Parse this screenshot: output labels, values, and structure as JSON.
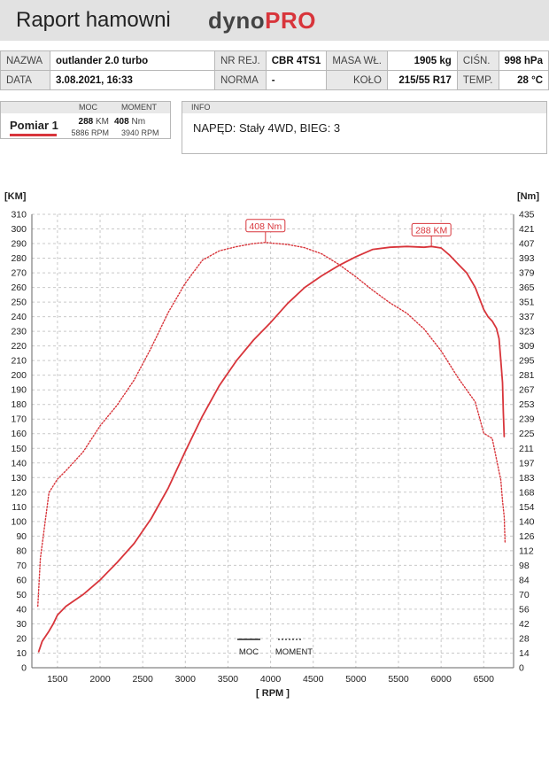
{
  "header": {
    "title": "Raport hamowni",
    "logo_primary": "dyno",
    "logo_accent": "PRO"
  },
  "meta": {
    "row1": [
      {
        "label": "NAZWA",
        "value": "outlander 2.0 turbo"
      },
      {
        "label": "NR REJ.",
        "value": "CBR 4TS1"
      },
      {
        "label": "MASA WŁ.",
        "value": "1905 kg"
      },
      {
        "label": "CIŚN.",
        "value": "998 hPa"
      }
    ],
    "row2": [
      {
        "label": "DATA",
        "value": "3.08.2021, 16:33"
      },
      {
        "label": "NORMA",
        "value": "-"
      },
      {
        "label": "KOŁO",
        "value": "215/55 R17"
      },
      {
        "label": "TEMP.",
        "value": "28 °C"
      }
    ]
  },
  "run": {
    "name": "Pomiar 1",
    "power_header": "MOC",
    "torque_header": "MOMENT",
    "power_value": "288",
    "power_unit": "KM",
    "power_rpm": "5886 RPM",
    "torque_value": "408",
    "torque_unit": "Nm",
    "torque_rpm": "3940 RPM"
  },
  "info": {
    "header": "INFO",
    "text": "NAPĘD: Stały 4WD,  BIEG: 3"
  },
  "colors": {
    "accent": "#d8353b",
    "grid": "#c9c9c9",
    "header_bg": "#e2e2e2"
  },
  "chart_data": {
    "type": "line",
    "xlabel": "[ RPM ]",
    "ylabel_left": "[KM]",
    "ylabel_right": "[Nm]",
    "xlim": [
      1200,
      6850
    ],
    "ylim_left": [
      0,
      310
    ],
    "ylim_right": [
      0,
      435
    ],
    "x_ticks": [
      1500,
      2000,
      2500,
      3000,
      3500,
      4000,
      4500,
      5000,
      5500,
      6000,
      6500
    ],
    "y_left_ticks": [
      0,
      10,
      20,
      30,
      40,
      50,
      60,
      70,
      80,
      90,
      100,
      110,
      120,
      130,
      140,
      150,
      160,
      170,
      180,
      190,
      200,
      210,
      220,
      230,
      240,
      250,
      260,
      270,
      280,
      290,
      300,
      310
    ],
    "y_right_ticks": [
      0,
      14,
      28,
      42,
      56,
      70,
      84,
      98,
      112,
      126,
      140,
      154,
      168,
      183,
      197,
      211,
      225,
      239,
      253,
      267,
      281,
      295,
      309,
      323,
      337,
      351,
      365,
      379,
      393,
      407,
      421,
      435
    ],
    "grid": true,
    "legend": {
      "position": "bottom-center",
      "entries": [
        "MOC",
        "MOMENT"
      ]
    },
    "series": [
      {
        "name": "MOC",
        "axis": "left",
        "unit": "KM",
        "style": "solid",
        "x": [
          1280,
          1320,
          1400,
          1450,
          1500,
          1600,
          1800,
          2000,
          2200,
          2400,
          2600,
          2800,
          3000,
          3200,
          3400,
          3600,
          3800,
          4000,
          4200,
          4400,
          4600,
          4800,
          5000,
          5200,
          5400,
          5600,
          5800,
          5886,
          6000,
          6100,
          6200,
          6300,
          6400,
          6500,
          6550,
          6600,
          6650,
          6680,
          6700,
          6720,
          6730,
          6740
        ],
        "values": [
          11,
          18,
          25,
          30,
          36,
          42,
          50,
          60,
          72,
          85,
          102,
          123,
          148,
          172,
          193,
          210,
          224,
          236,
          249,
          260,
          268,
          275,
          281,
          286,
          287.5,
          288,
          287.5,
          288,
          287,
          282,
          276,
          270,
          260,
          245,
          240,
          237,
          232,
          225,
          210,
          195,
          175,
          158
        ]
      },
      {
        "name": "MOMENT",
        "axis": "right",
        "unit": "Nm",
        "style": "dotted",
        "x": [
          1270,
          1300,
          1400,
          1500,
          1600,
          1800,
          2000,
          2200,
          2400,
          2600,
          2800,
          3000,
          3200,
          3400,
          3600,
          3800,
          3940,
          4000,
          4200,
          4400,
          4600,
          4800,
          5000,
          5200,
          5400,
          5600,
          5800,
          6000,
          6200,
          6400,
          6500,
          6600,
          6650,
          6700,
          6720,
          6740,
          6750
        ],
        "values": [
          59,
          105,
          168,
          181,
          189,
          207,
          232,
          252,
          276,
          307,
          341,
          369,
          391,
          400,
          404,
          407,
          408,
          407.5,
          406,
          403,
          397,
          387,
          375,
          362,
          350,
          340,
          325,
          304,
          278,
          255,
          225,
          220,
          200,
          180,
          160,
          145,
          120
        ]
      }
    ],
    "annotations": [
      {
        "text": "408 Nm",
        "x": 3940,
        "value": 408,
        "axis": "right"
      },
      {
        "text": "288 KM",
        "x": 5886,
        "value": 288,
        "axis": "left"
      }
    ]
  }
}
